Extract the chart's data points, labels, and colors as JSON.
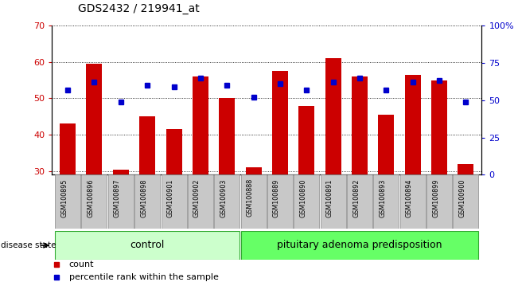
{
  "title": "GDS2432 / 219941_at",
  "samples": [
    "GSM100895",
    "GSM100896",
    "GSM100897",
    "GSM100898",
    "GSM100901",
    "GSM100902",
    "GSM100903",
    "GSM100888",
    "GSM100889",
    "GSM100890",
    "GSM100891",
    "GSM100892",
    "GSM100893",
    "GSM100894",
    "GSM100899",
    "GSM100900"
  ],
  "red_values": [
    43,
    59.5,
    30.5,
    45,
    41.5,
    56,
    50,
    31,
    57.5,
    48,
    61,
    56,
    45.5,
    56.5,
    55,
    32
  ],
  "blue_values_pct": [
    57,
    62,
    49,
    60,
    59,
    65,
    60,
    52,
    61,
    57,
    62,
    65,
    57,
    62,
    63,
    49
  ],
  "ylim_left": [
    29,
    70
  ],
  "ylim_right": [
    0,
    100
  ],
  "yticks_left": [
    30,
    40,
    50,
    60,
    70
  ],
  "yticks_right": [
    0,
    25,
    50,
    75,
    100
  ],
  "ytick_labels_right": [
    "0",
    "25",
    "50",
    "75",
    "100%"
  ],
  "control_count": 7,
  "control_label": "control",
  "disease_label": "pituitary adenoma predisposition",
  "disease_state_label": "disease state",
  "legend_red": "count",
  "legend_blue": "percentile rank within the sample",
  "bar_color": "#cc0000",
  "dot_color": "#0000cc",
  "control_bg": "#ccffcc",
  "disease_bg": "#66ff66",
  "tick_label_bg": "#c8c8c8"
}
